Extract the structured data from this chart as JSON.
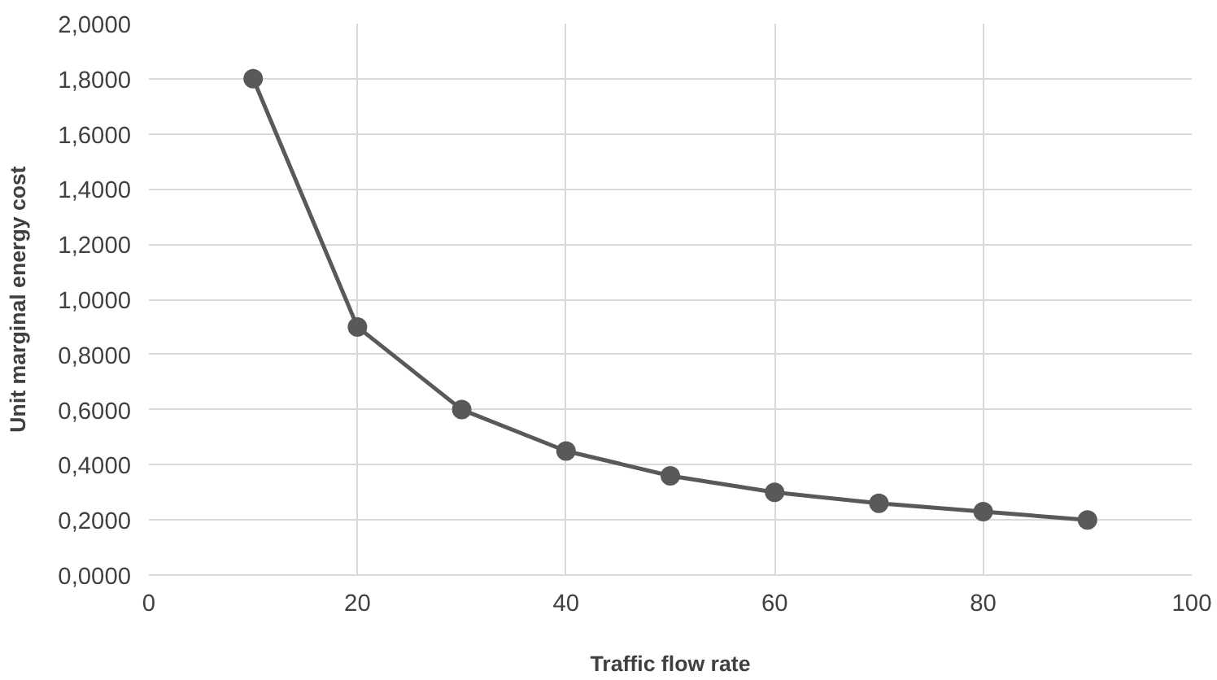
{
  "chart_data": {
    "type": "line",
    "xlabel": "Traffic flow rate",
    "ylabel": "Unit marginal energy cost",
    "x": [
      10,
      20,
      30,
      40,
      50,
      60,
      70,
      80,
      90
    ],
    "series": [
      {
        "color": "#595959",
        "values": [
          1.8,
          0.9,
          0.6,
          0.45,
          0.36,
          0.3,
          0.26,
          0.23,
          0.2
        ]
      }
    ],
    "xlim": [
      0,
      100
    ],
    "xticks": [
      0,
      20,
      40,
      60,
      80,
      100
    ],
    "ylim": [
      0,
      2
    ],
    "yticks": [
      {
        "value": 0,
        "label": "0,0000"
      },
      {
        "value": 0.2,
        "label": "0,2000"
      },
      {
        "value": 0.4,
        "label": "0,4000"
      },
      {
        "value": 0.6,
        "label": "0,6000"
      },
      {
        "value": 0.8,
        "label": "0,8000"
      },
      {
        "value": 1,
        "label": "1,0000"
      },
      {
        "value": 1.2,
        "label": "1,2000"
      },
      {
        "value": 1.4,
        "label": "1,4000"
      },
      {
        "value": 1.6,
        "label": "1,6000"
      },
      {
        "value": 1.8,
        "label": "1,8000"
      },
      {
        "value": 2,
        "label": "2,0000"
      }
    ],
    "grid": true,
    "marker": "circle",
    "line_style": "solid"
  }
}
